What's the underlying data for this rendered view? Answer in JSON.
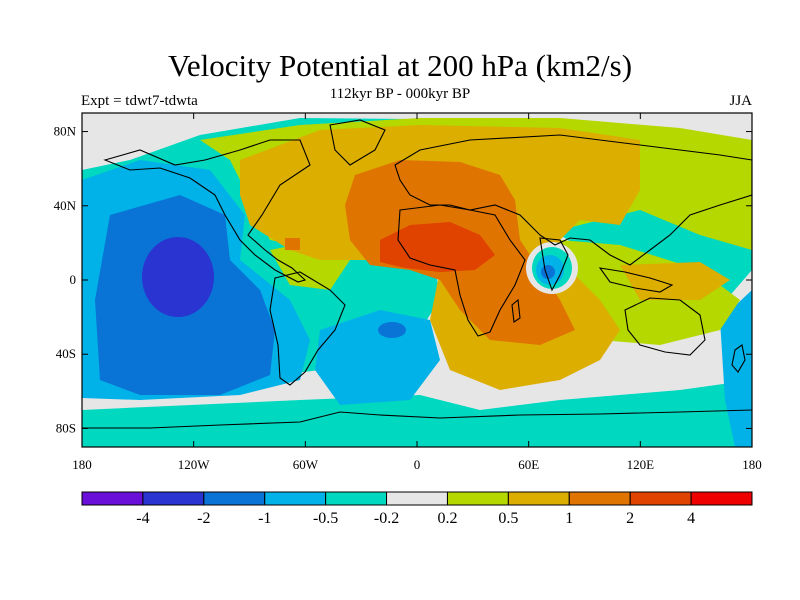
{
  "header": {
    "title": "Velocity Potential at 200 hPa (km2/s)",
    "subtitle": "112kyr BP - 000kyr BP",
    "left_label": "Expt = tdwt7-tdwta",
    "right_label": "JJA"
  },
  "map": {
    "lon_ticks": [
      "180",
      "120W",
      "60W",
      "0",
      "60E",
      "120E",
      "180"
    ],
    "lat_ticks": [
      "80N",
      "40N",
      "0",
      "40S",
      "80S"
    ],
    "lon_values": [
      -180,
      -120,
      -60,
      0,
      60,
      120,
      180
    ],
    "lat_values": [
      80,
      40,
      0,
      -40,
      -80
    ]
  },
  "colorbar": {
    "colors": [
      "#6a0fd8",
      "#2a34d0",
      "#0a73d6",
      "#00b2e8",
      "#00d8c0",
      "#e6e6e6",
      "#b4d800",
      "#dcae00",
      "#e07400",
      "#e04200",
      "#ee0000"
    ],
    "labels": [
      "-4",
      "-2",
      "-1",
      "-0.5",
      "-0.2",
      "0.2",
      "0.5",
      "1",
      "2",
      "4"
    ]
  }
}
